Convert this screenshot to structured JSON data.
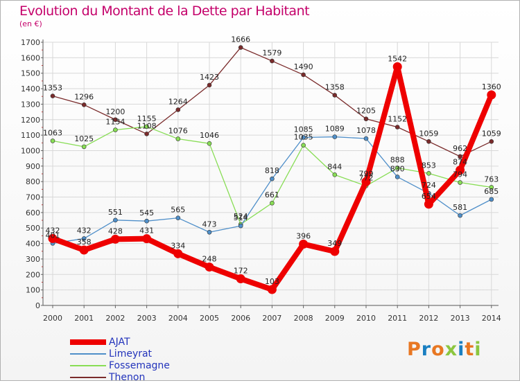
{
  "title": "Evolution du Montant de la Dette par Habitant",
  "subtitle": "(en €)",
  "logo": {
    "text": "Proxiti",
    "letters": [
      "P",
      "r",
      "o",
      "x",
      "i",
      "t",
      "i"
    ],
    "colors": [
      "#e87722",
      "#1a7fc1",
      "#e87722",
      "#8cc63f",
      "#1a7fc1",
      "#e87722",
      "#8cc63f"
    ]
  },
  "chart_data": {
    "type": "line",
    "x": [
      "2000",
      "2001",
      "2002",
      "2003",
      "2004",
      "2005",
      "2006",
      "2007",
      "2008",
      "2009",
      "2010",
      "2011",
      "2012",
      "2013",
      "2014"
    ],
    "ylim": [
      0,
      1700
    ],
    "yticks": [
      "0",
      "100",
      "200",
      "300",
      "400",
      "500",
      "600",
      "700",
      "800",
      "900",
      "1000",
      "1100",
      "1200",
      "1300",
      "1400",
      "1500",
      "1600",
      "1700"
    ],
    "grid": true,
    "legend_position": "bottom-left",
    "series": [
      {
        "name": "AJAT",
        "color": "#ee0000",
        "width": 8,
        "marker": 6,
        "values": [
          432,
          358,
          428,
          431,
          334,
          248,
          172,
          103,
          396,
          349,
          799,
          1542,
          654,
          874,
          1360
        ],
        "labels": [
          "432",
          "358",
          "428",
          "431",
          "334",
          "248",
          "172",
          "103",
          "396",
          "349",
          "799",
          "1542",
          "654",
          "874",
          "1360"
        ]
      },
      {
        "name": "Limeyrat",
        "color": "#4f8fc9",
        "width": 1.3,
        "marker": 3,
        "values": [
          401,
          432,
          551,
          545,
          565,
          473,
          514,
          818,
          1085,
          1089,
          1078,
          830,
          724,
          581,
          685
        ],
        "labels": [
          "401",
          "432",
          "551",
          "545",
          "565",
          "473",
          "514",
          "818",
          "1085",
          "1089",
          "1078",
          "830",
          "724",
          "581",
          "685"
        ]
      },
      {
        "name": "Fossemagne",
        "color": "#88dd55",
        "width": 1.3,
        "marker": 3,
        "values": [
          1063,
          1025,
          1134,
          1155,
          1076,
          1046,
          524,
          661,
          1035,
          844,
          772,
          888,
          853,
          794,
          763
        ],
        "labels": [
          "1063",
          "1025",
          "1134",
          "1155",
          "1076",
          "1046",
          "524",
          "661",
          "1035",
          "844",
          "772",
          "888",
          "853",
          "794",
          "763"
        ]
      },
      {
        "name": "Thenon",
        "color": "#7a2b2b",
        "width": 1.3,
        "marker": 3,
        "values": [
          1353,
          1296,
          1200,
          1108,
          1264,
          1423,
          1666,
          1579,
          1490,
          1358,
          1205,
          1152,
          1059,
          962,
          1059
        ],
        "labels": [
          "1353",
          "1296",
          "1200",
          "1108",
          "1264",
          "1423",
          "1666",
          "1579",
          "1490",
          "1358",
          "1205",
          "1152",
          "1059",
          "962",
          "1059"
        ]
      }
    ]
  }
}
